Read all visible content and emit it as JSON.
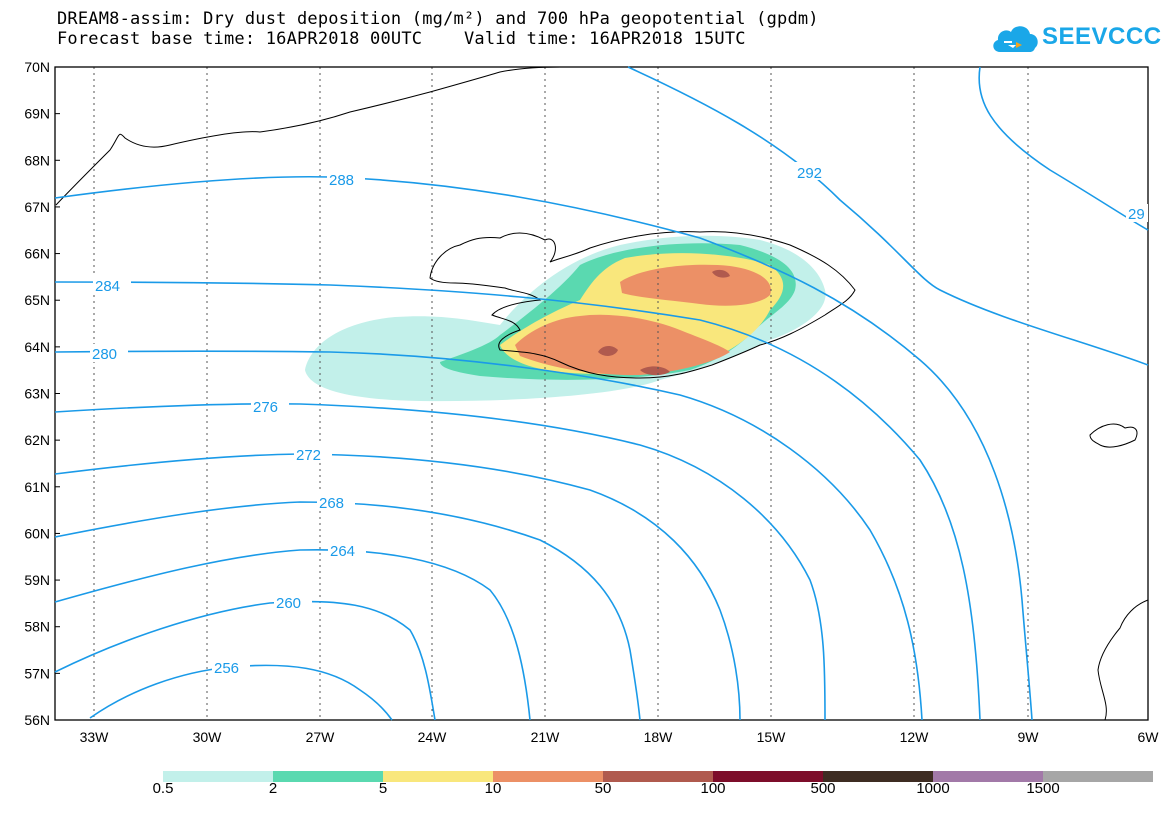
{
  "header": {
    "title_line1": "DREAM8-assim: Dry dust deposition (mg/m²) and 700 hPa geopotential (gpdm)",
    "title_line2": "Forecast base time: 16APR2018 00UTC    Valid time: 16APR2018 15UTC"
  },
  "logo": {
    "text": "SEEVCCC",
    "icon": "cloud-logo-icon",
    "color": "#1aa7e8"
  },
  "map": {
    "lat_labels": [
      "70N",
      "69N",
      "68N",
      "67N",
      "66N",
      "65N",
      "64N",
      "63N",
      "62N",
      "61N",
      "60N",
      "59N",
      "58N",
      "57N",
      "56N"
    ],
    "lon_labels": [
      "33W",
      "30W",
      "27W",
      "24W",
      "21W",
      "18W",
      "15W",
      "12W",
      "9W",
      "6W"
    ],
    "contour_color": "#1a9ae8",
    "contour_labels": [
      "292",
      "288",
      "284",
      "280",
      "276",
      "272",
      "268",
      "264",
      "260",
      "256",
      "29"
    ]
  },
  "legend": {
    "colors": [
      "#c2f0ea",
      "#5ad9b0",
      "#f9e77c",
      "#ec9066",
      "#b05a4e",
      "#7d0d2a",
      "#3e2c22",
      "#a279a8",
      "#a6a6a6"
    ],
    "labels": [
      "0.5",
      "2",
      "5",
      "10",
      "50",
      "100",
      "500",
      "1000",
      "1500"
    ]
  }
}
